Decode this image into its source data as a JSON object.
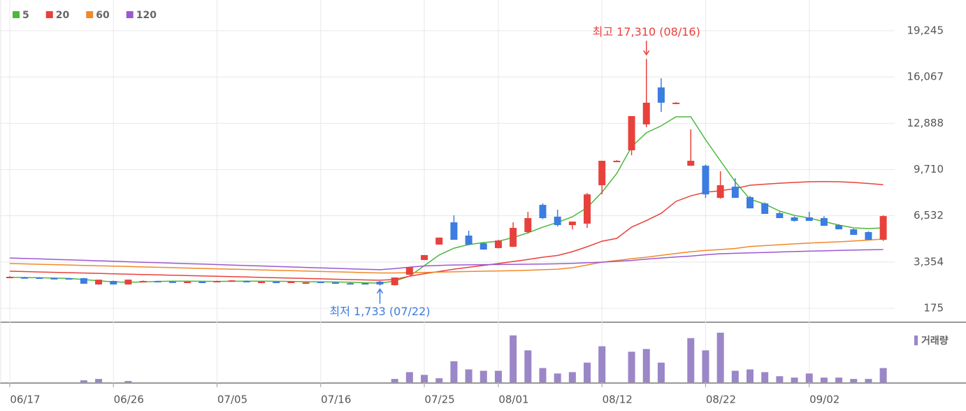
{
  "chart_data": {
    "type": "candlestick",
    "categories": [
      "06/17",
      null,
      null,
      null,
      null,
      null,
      null,
      "06/26",
      null,
      null,
      null,
      null,
      null,
      null,
      "07/05",
      null,
      null,
      null,
      null,
      null,
      null,
      "07/16",
      null,
      null,
      null,
      null,
      null,
      null,
      "07/25",
      null,
      null,
      null,
      null,
      "08/01",
      null,
      null,
      null,
      null,
      null,
      null,
      "08/12",
      null,
      null,
      null,
      null,
      null,
      null,
      "08/22",
      null,
      null,
      null,
      null,
      null,
      null,
      "09/02",
      null,
      null,
      null,
      null,
      null
    ],
    "open": [
      2336,
      2300,
      2290,
      2250,
      2240,
      2240,
      1810,
      2050,
      1810,
      2050,
      2050,
      2010,
      2000,
      2000,
      2050,
      2090,
      2050,
      2000,
      2000,
      2000,
      1950,
      2000,
      1950,
      1900,
      1900,
      2000,
      1760,
      2480,
      3490,
      4550,
      6080,
      5170,
      4640,
      4310,
      4400,
      5410,
      7280,
      6470,
      5890,
      5990,
      8630,
      10310,
      11030,
      12810,
      15350,
      14300,
      9970,
      9970,
      7760,
      8530,
      7810,
      7380,
      6710,
      6420,
      6420,
      6370,
      5890,
      5600,
      5410,
      4880
    ],
    "high": [
      2380,
      2340,
      2320,
      2290,
      2260,
      2260,
      2150,
      2070,
      2150,
      2080,
      2070,
      2040,
      2030,
      2020,
      2070,
      2110,
      2080,
      2030,
      2020,
      2030,
      1980,
      2020,
      1980,
      1930,
      1920,
      2050,
      2290,
      3010,
      3830,
      5030,
      6560,
      5510,
      4700,
      4880,
      6080,
      6800,
      7380,
      6950,
      6130,
      8100,
      10310,
      10350,
      13380,
      17310,
      15980,
      14340,
      12470,
      10050,
      9590,
      9110,
      7900,
      7450,
      6800,
      6500,
      6800,
      6500,
      5950,
      5650,
      5460,
      6560
    ],
    "low": [
      2300,
      2260,
      2240,
      2220,
      2190,
      1850,
      1790,
      1800,
      1800,
      2020,
      2000,
      1990,
      1980,
      1980,
      2030,
      2070,
      2030,
      1980,
      1980,
      1980,
      1930,
      1980,
      1930,
      1880,
      1880,
      1733,
      1740,
      2460,
      3480,
      4540,
      4880,
      4500,
      4200,
      4290,
      4380,
      5300,
      6300,
      5800,
      5600,
      5700,
      8000,
      10300,
      10690,
      12620,
      13670,
      14260,
      9950,
      7760,
      7700,
      7760,
      7040,
      6660,
      6370,
      6130,
      6180,
      5840,
      5600,
      5220,
      4880,
      4800
    ],
    "close": [
      2336,
      2290,
      2250,
      2240,
      2200,
      1860,
      2140,
      1810,
      2140,
      2050,
      2030,
      2000,
      2000,
      1990,
      2050,
      2090,
      2040,
      2000,
      1990,
      2000,
      1950,
      1990,
      1940,
      1890,
      1890,
      1810,
      2290,
      3010,
      3830,
      5030,
      4880,
      4550,
      4210,
      4830,
      5700,
      6370,
      6370,
      5890,
      6130,
      8000,
      10310,
      10310,
      13380,
      14300,
      14300,
      14300,
      10310,
      8000,
      8630,
      7760,
      7040,
      6660,
      6370,
      6180,
      6180,
      5840,
      5600,
      5220,
      4880,
      6510
    ],
    "up_color": "#e8413c",
    "down_color": "#3b7de0",
    "series": [
      {
        "name": "5",
        "color": "#4cb83c",
        "values": [
          2300,
          2290,
          2270,
          2250,
          2220,
          2150,
          2060,
          1990,
          1960,
          1980,
          2020,
          2040,
          2040,
          2030,
          2020,
          2030,
          2040,
          2040,
          2030,
          2020,
          2000,
          1990,
          1980,
          1960,
          1930,
          1900,
          2050,
          2380,
          3100,
          3830,
          4300,
          4550,
          4690,
          4780,
          5030,
          5360,
          5750,
          6080,
          6460,
          7090,
          8150,
          9440,
          11270,
          12230,
          12710,
          13330,
          13330,
          11750,
          10310,
          8870,
          7670,
          7330,
          6850,
          6560,
          6370,
          6130,
          5890,
          5700,
          5650,
          5700
        ]
      },
      {
        "name": "20",
        "color": "#e8413c",
        "values": [
          2720,
          2695,
          2670,
          2645,
          2620,
          2595,
          2570,
          2545,
          2520,
          2495,
          2470,
          2445,
          2420,
          2395,
          2370,
          2345,
          2320,
          2295,
          2270,
          2245,
          2220,
          2195,
          2170,
          2145,
          2120,
          2100,
          2150,
          2380,
          2550,
          2700,
          2860,
          2990,
          3120,
          3250,
          3390,
          3530,
          3680,
          3800,
          4060,
          4400,
          4780,
          4980,
          5750,
          6200,
          6700,
          7520,
          7900,
          8150,
          8250,
          8400,
          8630,
          8700,
          8770,
          8820,
          8870,
          8880,
          8870,
          8820,
          8750,
          8670
        ]
      },
      {
        "name": "60",
        "color": "#f0892a",
        "values": [
          3250,
          3224,
          3198,
          3172,
          3146,
          3120,
          3094,
          3068,
          3042,
          3016,
          2990,
          2964,
          2938,
          2912,
          2886,
          2860,
          2834,
          2808,
          2782,
          2756,
          2730,
          2704,
          2678,
          2652,
          2626,
          2600,
          2600,
          2620,
          2640,
          2660,
          2680,
          2700,
          2720,
          2740,
          2760,
          2790,
          2820,
          2860,
          2960,
          3150,
          3340,
          3460,
          3580,
          3680,
          3810,
          3940,
          4060,
          4150,
          4210,
          4280,
          4420,
          4480,
          4540,
          4600,
          4650,
          4700,
          4740,
          4800,
          4860,
          4930
        ]
      },
      {
        "name": "120",
        "color": "#9b59d0",
        "values": [
          3630,
          3598,
          3565,
          3533,
          3500,
          3468,
          3436,
          3403,
          3371,
          3338,
          3306,
          3274,
          3241,
          3209,
          3176,
          3144,
          3112,
          3079,
          3047,
          3014,
          2982,
          2950,
          2917,
          2885,
          2852,
          2820,
          2900,
          3000,
          3080,
          3120,
          3150,
          3160,
          3170,
          3180,
          3190,
          3200,
          3210,
          3230,
          3260,
          3300,
          3340,
          3400,
          3460,
          3550,
          3630,
          3700,
          3760,
          3850,
          3920,
          3950,
          3980,
          4010,
          4040,
          4070,
          4100,
          4120,
          4150,
          4170,
          4190,
          4210
        ]
      }
    ],
    "ylim": [
      175,
      19245
    ],
    "yticks": [
      175,
      {
        "value": 3354,
        "label": "3,354"
      },
      {
        "value": 6532,
        "label": "6,532"
      },
      {
        "value": 9710,
        "label": "9,710"
      },
      {
        "value": 12888,
        "label": "12,888"
      },
      {
        "value": 16067,
        "label": "16,067"
      },
      {
        "value": 19245,
        "label": "19,245"
      }
    ],
    "grid": true,
    "annotations": [
      {
        "text": "최고 17,310 (08/16)",
        "color": "#e8413c"
      },
      {
        "text": "최저 1,733 (07/22)",
        "color": "#3b7de0"
      }
    ],
    "volume": {
      "name": "거래량",
      "color": "#9b86c8",
      "ylim": [
        0,
        75
      ],
      "values": [
        0,
        0,
        0,
        0,
        0,
        3,
        5,
        0,
        2,
        0,
        0,
        0,
        0,
        0,
        0,
        0,
        0,
        0,
        0,
        0,
        0,
        0,
        0,
        0,
        0,
        0,
        5,
        15,
        11,
        6,
        31,
        19,
        17,
        17,
        69,
        47,
        21,
        13,
        15,
        29,
        53,
        0,
        45,
        49,
        29,
        0,
        65,
        47,
        73,
        17,
        19,
        15,
        9,
        7,
        13,
        7,
        7,
        5,
        5,
        21
      ]
    }
  }
}
